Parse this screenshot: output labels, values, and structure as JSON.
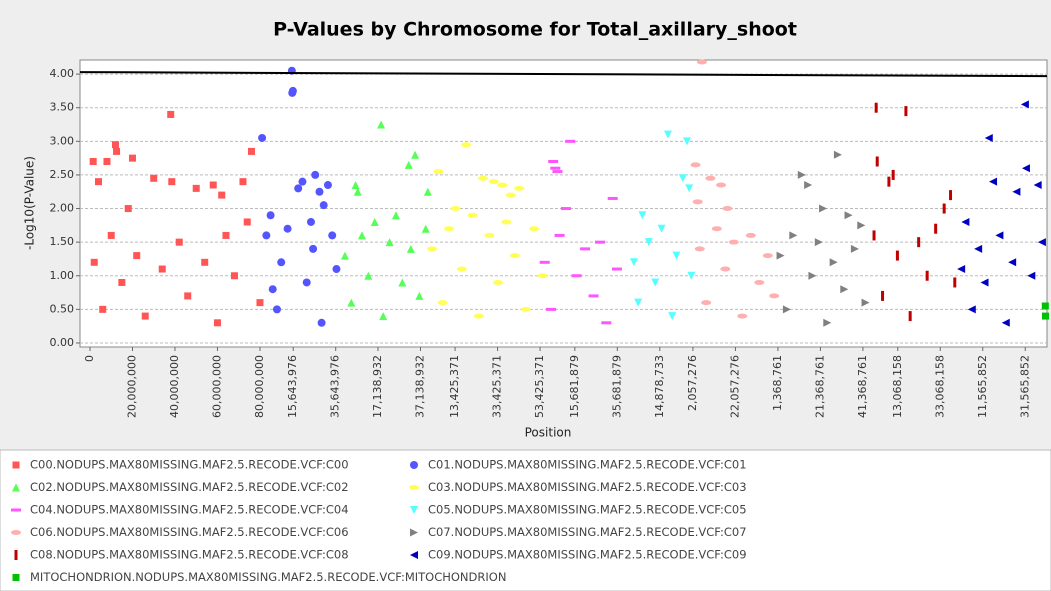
{
  "chart_data": {
    "type": "scatter",
    "title": "P-Values by Chromosome for Total_axillary_shoot",
    "x_label": "Position",
    "y_label": "-Log10(P-Value)",
    "xlim": [
      -4700000,
      450400000
    ],
    "ylim": [
      -0.06,
      4.21
    ],
    "yticks": [
      {
        "value": 0,
        "label": "0.00"
      },
      {
        "value": 0.5,
        "label": "0.50"
      },
      {
        "value": 1,
        "label": "1.00"
      },
      {
        "value": 1.5,
        "label": "1.50"
      },
      {
        "value": 2,
        "label": "2.00"
      },
      {
        "value": 2.5,
        "label": "2.50"
      },
      {
        "value": 3,
        "label": "3.00"
      },
      {
        "value": 3.5,
        "label": "3.50"
      },
      {
        "value": 4,
        "label": "4.00"
      }
    ],
    "xticks": [
      {
        "value": 0,
        "label": "0"
      },
      {
        "value": 20000000,
        "label": "20,000,000"
      },
      {
        "value": 40000000,
        "label": "40,000,000"
      },
      {
        "value": 60000000,
        "label": "60,000,000"
      },
      {
        "value": 80000000,
        "label": "80,000,000"
      },
      {
        "value": 95643976,
        "label": "15,643,976"
      },
      {
        "value": 115643976,
        "label": "35,643,976"
      },
      {
        "value": 135538932,
        "label": "17,138,932"
      },
      {
        "value": 155538932,
        "label": "37,138,932"
      },
      {
        "value": 171825371,
        "label": "13,425,371"
      },
      {
        "value": 191825371,
        "label": "33,425,371"
      },
      {
        "value": 211825371,
        "label": "53,425,371"
      },
      {
        "value": 228181879,
        "label": "15,681,879"
      },
      {
        "value": 248181879,
        "label": "35,681,879"
      },
      {
        "value": 268178733,
        "label": "14,878,733"
      },
      {
        "value": 283757276,
        "label": "2,057,276"
      },
      {
        "value": 303757276,
        "label": "22,057,276"
      },
      {
        "value": 323768761,
        "label": "1,368,761"
      },
      {
        "value": 343768761,
        "label": "21,368,761"
      },
      {
        "value": 363768761,
        "label": "41,368,761"
      },
      {
        "value": 380168158,
        "label": "13,068,158"
      },
      {
        "value": 400168158,
        "label": "33,068,158"
      },
      {
        "value": 420165852,
        "label": "11,565,852"
      },
      {
        "value": 440165852,
        "label": "31,565,852"
      }
    ],
    "grid": true,
    "threshold_line": [
      4.03,
      3.97
    ],
    "series": [
      {
        "name": "C00.NODUPS.MAX80MISSING.MAF2.5.RECODE.VCF:C00",
        "color": "#ff5555",
        "marker": "square",
        "x": [
          1500000,
          4000000,
          8000000,
          12000000,
          12500000,
          20000000,
          30000000,
          38000000,
          38500000,
          50000000,
          58000000,
          62000000,
          72000000,
          76000000,
          2000000,
          6000000,
          10000000,
          15000000,
          18000000,
          22000000,
          26000000,
          34000000,
          42000000,
          46000000,
          54000000,
          60000000,
          64000000,
          68000000,
          74000000,
          80000000
        ],
        "values": [
          2.7,
          2.4,
          2.7,
          2.95,
          2.85,
          2.75,
          2.45,
          3.4,
          2.4,
          2.3,
          2.35,
          2.2,
          2.4,
          2.85,
          1.2,
          0.5,
          1.6,
          0.9,
          2.0,
          1.3,
          0.4,
          1.1,
          1.5,
          0.7,
          1.2,
          0.3,
          1.6,
          1.0,
          1.8,
          0.6
        ]
      },
      {
        "name": "C01.NODUPS.MAX80MISSING.MAF2.5.RECODE.VCF:C01",
        "color": "#5555ff",
        "marker": "circle",
        "x": [
          81000000,
          83000000,
          95000000,
          95500000,
          95200000,
          85000000,
          100000000,
          98000000,
          106000000,
          108000000,
          112000000,
          110000000,
          104000000,
          90000000,
          88000000,
          93000000,
          102000000,
          105000000,
          109000000,
          114000000,
          116000000,
          86000000
        ],
        "values": [
          3.05,
          1.6,
          4.05,
          3.75,
          3.72,
          1.9,
          2.4,
          2.3,
          2.5,
          2.25,
          2.35,
          2.05,
          1.8,
          1.2,
          0.5,
          1.7,
          0.9,
          1.4,
          0.3,
          1.6,
          1.1,
          0.8
        ]
      },
      {
        "name": "C02.NODUPS.MAX80MISSING.MAF2.5.RECODE.VCF:C02",
        "color": "#55ff55",
        "marker": "triangle-up",
        "x": [
          125000000,
          126000000,
          137000000,
          150000000,
          153000000,
          159000000,
          120000000,
          123000000,
          128000000,
          131000000,
          134000000,
          138000000,
          141000000,
          144000000,
          147000000,
          151000000,
          155000000,
          158000000
        ],
        "values": [
          2.35,
          2.25,
          3.25,
          2.65,
          2.8,
          2.25,
          1.3,
          0.6,
          1.6,
          1.0,
          1.8,
          0.4,
          1.5,
          1.9,
          0.9,
          1.4,
          0.7,
          1.7
        ]
      },
      {
        "name": "C03.NODUPS.MAX80MISSING.MAF2.5.RECODE.VCF:C03",
        "color": "#ffff55",
        "marker": "ellipse",
        "x": [
          164000000,
          177000000,
          185000000,
          190000000,
          194000000,
          198000000,
          202000000,
          172000000,
          161000000,
          166000000,
          169000000,
          175000000,
          180000000,
          183000000,
          188000000,
          192000000,
          196000000,
          200000000,
          205000000,
          209000000,
          213000000
        ],
        "values": [
          2.55,
          2.95,
          2.45,
          2.4,
          2.35,
          2.2,
          2.3,
          2.0,
          1.4,
          0.6,
          1.7,
          1.1,
          1.9,
          0.4,
          1.6,
          0.9,
          1.8,
          1.3,
          0.5,
          1.7,
          1.0
        ]
      },
      {
        "name": "C04.NODUPS.MAX80MISSING.MAF2.5.RECODE.VCF:C04",
        "color": "#ff55ff",
        "marker": "hbar",
        "x": [
          218000000,
          219000000,
          220000000,
          226000000,
          224000000,
          246000000,
          214000000,
          217000000,
          221000000,
          229000000,
          233000000,
          237000000,
          240000000,
          243000000,
          248000000
        ],
        "values": [
          2.7,
          2.6,
          2.55,
          3.0,
          2.0,
          2.15,
          1.2,
          0.5,
          1.6,
          1.0,
          1.4,
          0.7,
          1.5,
          0.3,
          1.1
        ]
      },
      {
        "name": "C05.NODUPS.MAX80MISSING.MAF2.5.RECODE.VCF:C05",
        "color": "#55ffff",
        "marker": "triangle-down",
        "x": [
          260000000,
          272000000,
          279000000,
          281000000,
          282000000,
          256000000,
          258000000,
          263000000,
          266000000,
          269000000,
          274000000,
          276000000,
          283000000
        ],
        "values": [
          1.9,
          3.1,
          2.45,
          3.0,
          2.3,
          1.2,
          0.6,
          1.5,
          0.9,
          1.7,
          0.4,
          1.3,
          1.0
        ]
      },
      {
        "name": "C06.NODUPS.MAX80MISSING.MAF2.5.RECODE.VCF:C06",
        "color": "#ffafaf",
        "marker": "ellipse",
        "x": [
          288000000,
          285000000,
          292000000,
          297000000,
          300000000,
          286000000,
          287000000,
          290000000,
          295000000,
          299000000,
          303000000,
          307000000,
          311000000,
          315000000,
          319000000,
          322000000
        ],
        "values": [
          4.18,
          2.65,
          2.45,
          2.35,
          2.0,
          2.1,
          1.4,
          0.6,
          1.7,
          1.1,
          1.5,
          0.4,
          1.6,
          0.9,
          1.3,
          0.7
        ]
      },
      {
        "name": "C07.NODUPS.MAX80MISSING.MAF2.5.RECODE.VCF:C07",
        "color": "#808080",
        "marker": "triangle-right",
        "x": [
          335000000,
          338000000,
          352000000,
          345000000,
          357000000,
          363000000,
          325000000,
          328000000,
          331000000,
          340000000,
          343000000,
          347000000,
          350000000,
          355000000,
          360000000,
          365000000
        ],
        "values": [
          2.5,
          2.35,
          2.8,
          2.0,
          1.9,
          1.75,
          1.3,
          0.5,
          1.6,
          1.0,
          1.5,
          0.3,
          1.2,
          0.8,
          1.4,
          0.6
        ]
      },
      {
        "name": "C08.NODUPS.MAX80MISSING.MAF2.5.RECODE.VCF:C08",
        "color": "#c00000",
        "marker": "vbar",
        "x": [
          370000000,
          370500000,
          384000000,
          376000000,
          378000000,
          405000000,
          402000000,
          369000000,
          373000000,
          380000000,
          386000000,
          390000000,
          394000000,
          398000000,
          407000000
        ],
        "values": [
          3.5,
          2.7,
          3.45,
          2.4,
          2.5,
          2.2,
          2.0,
          1.6,
          0.7,
          1.3,
          0.4,
          1.5,
          1.0,
          1.7,
          0.9
        ]
      },
      {
        "name": "C09.NODUPS.MAX80MISSING.MAF2.5.RECODE.VCF:C09",
        "color": "#0000c0",
        "marker": "triangle-left",
        "x": [
          440000000,
          423000000,
          440500000,
          425000000,
          436000000,
          446000000,
          412000000,
          410000000,
          415000000,
          418000000,
          421000000,
          428000000,
          431000000,
          434000000,
          443000000,
          448000000
        ],
        "values": [
          3.55,
          3.05,
          2.6,
          2.4,
          2.25,
          2.35,
          1.8,
          1.1,
          0.5,
          1.4,
          0.9,
          1.6,
          0.3,
          1.2,
          1.0,
          1.5
        ]
      },
      {
        "name": "MITOCHONDRION.NODUPS.MAX80MISSING.MAF2.5.RECODE.VCF:MITOCHONDRION",
        "color": "#00c000",
        "marker": "square",
        "x": [
          449600000,
          449700000
        ],
        "values": [
          0.55,
          0.4
        ]
      }
    ]
  }
}
